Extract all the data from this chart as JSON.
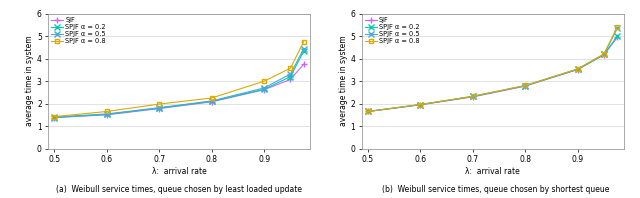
{
  "x": [
    0.5,
    0.6,
    0.7,
    0.8,
    0.9,
    0.95,
    0.975
  ],
  "left_SJF": [
    1.38,
    1.5,
    1.78,
    2.08,
    2.62,
    3.08,
    3.75
  ],
  "left_SPJF02": [
    1.38,
    1.52,
    1.8,
    2.1,
    2.64,
    3.2,
    4.33
  ],
  "left_SPJF05": [
    1.4,
    1.54,
    1.82,
    2.12,
    2.7,
    3.32,
    4.43
  ],
  "left_SPJF08": [
    1.42,
    1.65,
    1.98,
    2.25,
    3.0,
    3.58,
    4.75
  ],
  "right_SJF": [
    1.65,
    1.95,
    2.3,
    2.78,
    3.52,
    4.18,
    4.95
  ],
  "right_SPJF02": [
    1.65,
    1.95,
    2.32,
    2.8,
    3.53,
    4.19,
    5.0
  ],
  "right_SPJF05": [
    1.65,
    1.96,
    2.32,
    2.8,
    3.54,
    4.2,
    5.35
  ],
  "right_SPJF08": [
    1.65,
    1.96,
    2.33,
    2.81,
    3.55,
    4.22,
    5.42
  ],
  "color_SJF": "#cc66ff",
  "color_SPJF02": "#00ccaa",
  "color_SPJF05": "#44aadd",
  "color_SPJF08": "#ddaa00",
  "marker_SJF": "+",
  "marker_SPJF02": "x",
  "marker_SPJF05": "x",
  "marker_SPJF08": "s",
  "legend_labels": [
    "SJF",
    "SPJF α = 0.2",
    "SPJF α = 0.5",
    "SPJF α = 0.8"
  ],
  "xlim": [
    0.488,
    0.988
  ],
  "ylim_left": [
    0,
    6
  ],
  "ylim_right": [
    0,
    6
  ],
  "xticks": [
    0.5,
    0.6,
    0.7,
    0.8,
    0.9
  ],
  "yticks": [
    0,
    1,
    2,
    3,
    4,
    5,
    6
  ],
  "xlabel": "λ:  arrival rate",
  "ylabel": "average time in system",
  "caption_left": "(a)  Weibull service times, queue chosen by least loaded update",
  "caption_right": "(b)  Weibull service times, queue chosen by shortest queue",
  "bg_color": "#ffffff",
  "fig_bg": "#ffffff",
  "plot_bg": "#ffffff"
}
